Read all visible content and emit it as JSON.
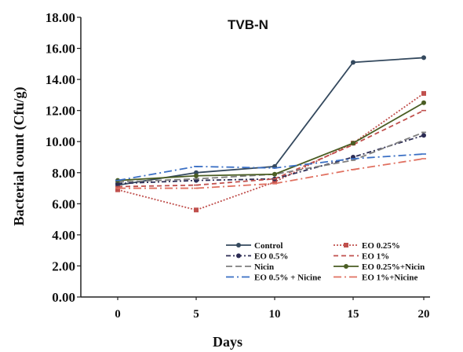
{
  "chart_data": {
    "type": "line",
    "title": "TVB-N",
    "xlabel": "Days",
    "ylabel": "Bacterial count (Cfu/g)",
    "x": [
      0,
      5,
      10,
      15,
      20
    ],
    "x_tick_labels": [
      "0",
      "5",
      "10",
      "15",
      "20"
    ],
    "y_tick_labels": [
      "0.00",
      "2.00",
      "4.00",
      "6.00",
      "8.00",
      "10.00",
      "12.00",
      "14.00",
      "16.00",
      "18.00"
    ],
    "ylim": [
      0,
      18
    ],
    "grid": false,
    "legend_position": "bottom-right",
    "series": [
      {
        "name": "Control",
        "values": [
          7.2,
          8.0,
          8.4,
          15.1,
          15.4
        ],
        "color": "#34495e",
        "dash": "",
        "marker": "circle"
      },
      {
        "name": "EO 0.25%",
        "values": [
          6.9,
          5.6,
          7.4,
          9.9,
          13.1
        ],
        "color": "#c0504d",
        "dash": "2,2",
        "marker": "square"
      },
      {
        "name": "EO 0.5%",
        "values": [
          7.3,
          7.5,
          7.6,
          9.0,
          10.4
        ],
        "color": "#2c2c54",
        "dash": "6,3,2,3",
        "marker": "circle"
      },
      {
        "name": "EO 1%",
        "values": [
          7.1,
          7.2,
          7.6,
          9.8,
          12.0
        ],
        "color": "#c0504d",
        "dash": "6,4",
        "marker": "none"
      },
      {
        "name": "Nicin",
        "values": [
          7.4,
          7.6,
          7.9,
          8.8,
          10.6
        ],
        "color": "#7f7f7f",
        "dash": "8,4",
        "marker": "none"
      },
      {
        "name": "EO 0.25%+Nicin",
        "values": [
          7.5,
          7.8,
          7.9,
          9.9,
          12.5
        ],
        "color": "#4a5d23",
        "dash": "",
        "marker": "circle"
      },
      {
        "name": "EO 0.5% + Nicine",
        "values": [
          7.5,
          8.4,
          8.3,
          8.9,
          9.2
        ],
        "color": "#3a6fc4",
        "dash": "10,4,2,4",
        "marker": "none"
      },
      {
        "name": "EO 1%+Nicine",
        "values": [
          7.0,
          7.0,
          7.3,
          8.2,
          8.9
        ],
        "color": "#e07060",
        "dash": "10,4,2,4",
        "marker": "none"
      }
    ]
  }
}
